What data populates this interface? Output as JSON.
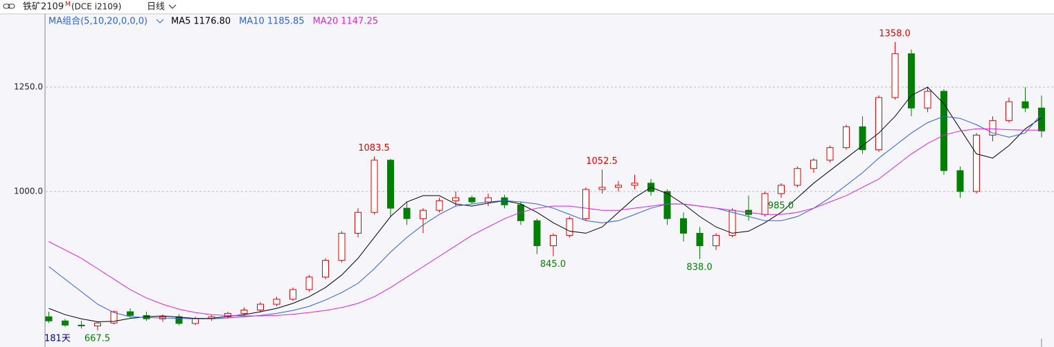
{
  "header": {
    "symbol": "铁矿2109",
    "marker": "M",
    "exchange": "(DCE i2109)",
    "period": "日线"
  },
  "chart_data": {
    "type": "candlestick",
    "categories": [
      null,
      null,
      null,
      null,
      null,
      null,
      null,
      null,
      null,
      null,
      null,
      null,
      null,
      null,
      null,
      null,
      null,
      null,
      null,
      null,
      null,
      null,
      null,
      null,
      null,
      null,
      null,
      null,
      null,
      null,
      null,
      null,
      null,
      null,
      null,
      null,
      null,
      null,
      null,
      null,
      null,
      null,
      null,
      null,
      null,
      null,
      null,
      null,
      null,
      null,
      null,
      null,
      null,
      null,
      null,
      null,
      null,
      null,
      null,
      null,
      null,
      null
    ],
    "open": [
      700,
      690,
      680,
      678,
      685,
      712,
      703,
      695,
      700,
      684,
      696,
      700,
      708,
      716,
      730,
      742,
      765,
      795,
      835,
      900,
      950,
      1075,
      960,
      935,
      955,
      978,
      985,
      975,
      985,
      968,
      930,
      870,
      895,
      935,
      1005,
      1010,
      1015,
      1020,
      1000,
      935,
      900,
      870,
      895,
      955,
      945,
      995,
      1015,
      1055,
      1075,
      1105,
      1155,
      1100,
      1225,
      1330,
      1200,
      1240,
      1050,
      1000,
      1135,
      1170,
      1215,
      1200
    ],
    "high": [
      712,
      695,
      690,
      688,
      715,
      720,
      712,
      705,
      706,
      700,
      705,
      712,
      722,
      735,
      748,
      770,
      800,
      840,
      905,
      960,
      1083.5,
      1078,
      975,
      960,
      985,
      1000,
      990,
      995,
      992,
      975,
      935,
      900,
      940,
      1010,
      1052.5,
      1025,
      1040,
      1030,
      1005,
      950,
      915,
      900,
      960,
      990,
      1000,
      1020,
      1060,
      1080,
      1110,
      1160,
      1180,
      1230,
      1358,
      1340,
      1250,
      1245,
      1060,
      1140,
      1180,
      1225,
      1250,
      1230
    ],
    "low": [
      685,
      676,
      672,
      667.5,
      682,
      698,
      690,
      688,
      680,
      680,
      690,
      696,
      702,
      710,
      725,
      738,
      760,
      790,
      830,
      890,
      945,
      940,
      920,
      900,
      950,
      965,
      970,
      965,
      960,
      920,
      850,
      845,
      890,
      930,
      995,
      1000,
      1005,
      990,
      920,
      880,
      838,
      860,
      890,
      930,
      940,
      985,
      1010,
      1045,
      1070,
      1100,
      1090,
      1095,
      1220,
      1180,
      1190,
      1040,
      985,
      995,
      1120,
      1165,
      1190,
      1130
    ],
    "close": [
      690,
      680,
      678,
      685,
      712,
      703,
      695,
      700,
      684,
      696,
      700,
      708,
      716,
      730,
      742,
      765,
      795,
      835,
      900,
      950,
      1075,
      960,
      935,
      955,
      978,
      985,
      975,
      985,
      968,
      930,
      870,
      895,
      935,
      1005,
      1010,
      1015,
      1020,
      1000,
      935,
      900,
      870,
      895,
      955,
      945,
      995,
      1015,
      1055,
      1075,
      1105,
      1155,
      1100,
      1225,
      1330,
      1200,
      1240,
      1050,
      1000,
      1135,
      1170,
      1215,
      1200,
      1145
    ],
    "up_color": "#e00000",
    "down_color": "#008000",
    "indicator_label": "MA组合(5,10,20,0,0,0)",
    "ma": [
      {
        "name": "MA5",
        "color": "#000000",
        "last_value_label": "1176.80",
        "values": [
          720,
          705,
          695,
          688,
          689,
          696,
          700,
          702,
          699,
          696,
          696,
          701,
          705,
          712,
          720,
          732,
          748,
          770,
          800,
          840,
          890,
          940,
          975,
          990,
          990,
          970,
          965,
          972,
          978,
          970,
          950,
          925,
          905,
          900,
          915,
          950,
          985,
          1010,
          995,
          970,
          940,
          915,
          900,
          905,
          925,
          950,
          985,
          1020,
          1050,
          1080,
          1110,
          1140,
          1180,
          1230,
          1250,
          1210,
          1150,
          1090,
          1080,
          1110,
          1150,
          1176.8
        ]
      },
      {
        "name": "MA10",
        "color": "#3060d0",
        "last_value_label": "1185.85",
        "values": [
          820,
          790,
          760,
          730,
          710,
          700,
          698,
          697,
          696,
          695,
          695,
          697,
          700,
          703,
          708,
          715,
          725,
          740,
          758,
          780,
          815,
          855,
          890,
          920,
          945,
          965,
          970,
          975,
          978,
          975,
          970,
          960,
          945,
          930,
          925,
          930,
          945,
          960,
          970,
          970,
          965,
          960,
          950,
          940,
          930,
          930,
          940,
          960,
          985,
          1015,
          1045,
          1080,
          1110,
          1140,
          1165,
          1180,
          1175,
          1160,
          1140,
          1130,
          1140,
          1185.85
        ]
      },
      {
        "name": "MA20",
        "color": "#e020e0",
        "last_value_label": "1147.25",
        "values": [
          880,
          860,
          840,
          815,
          790,
          765,
          745,
          730,
          718,
          710,
          705,
          703,
          702,
          702,
          703,
          706,
          710,
          715,
          722,
          732,
          748,
          770,
          795,
          820,
          845,
          870,
          895,
          915,
          935,
          950,
          960,
          965,
          965,
          960,
          955,
          955,
          960,
          965,
          970,
          970,
          965,
          960,
          955,
          950,
          945,
          945,
          950,
          960,
          975,
          990,
          1010,
          1030,
          1060,
          1090,
          1115,
          1135,
          1145,
          1150,
          1150,
          1148,
          1147,
          1147.25
        ]
      }
    ],
    "annotations": [
      {
        "kind": "high",
        "value": 1083.5,
        "label": "1083.5"
      },
      {
        "kind": "high",
        "value": 1052.5,
        "label": "1052.5"
      },
      {
        "kind": "high",
        "value": 1358,
        "label": "1358.0"
      },
      {
        "kind": "low",
        "value": 845,
        "label": "845.0"
      },
      {
        "kind": "low",
        "value": 838,
        "label": "838.0"
      },
      {
        "kind": "low",
        "value": 985,
        "label": "985.0"
      },
      {
        "kind": "low",
        "value": 667.5,
        "label": "667.5"
      }
    ],
    "period_label": "181天",
    "ylim": [
      627.5,
      1409
    ],
    "yticks": [
      {
        "value": 1000,
        "label": "1000.0"
      },
      {
        "value": 1250,
        "label": "1250.0"
      }
    ],
    "grid": true
  }
}
